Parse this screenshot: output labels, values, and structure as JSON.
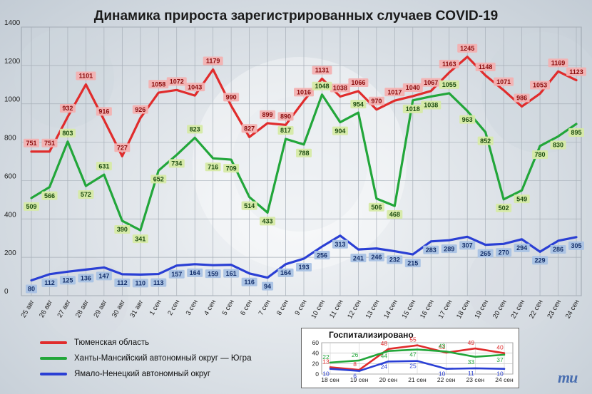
{
  "chart_data": [
    {
      "type": "line",
      "title": "Динамика прироста зарегистрированных случаев COVID-19",
      "xlabel": "",
      "ylabel": "",
      "ylim": [
        0,
        1400
      ],
      "yticks": [
        "0",
        "200",
        "400",
        "600",
        "800",
        "1000",
        "1200",
        "1400"
      ],
      "grid": true,
      "categories": [
        "25 авг",
        "26 авг",
        "27 авг",
        "28 авг",
        "29 авг",
        "30 авг",
        "31 авг",
        "1 сен",
        "2 сен",
        "3 сен",
        "4 сен",
        "5 сен",
        "6 сен",
        "7 сен",
        "8 сен",
        "9 сен",
        "10 сен",
        "11 сен",
        "12 сен",
        "13 сен",
        "14 сен",
        "15 сен",
        "16 сен",
        "17 сен",
        "18 сен",
        "19 сен",
        "20 сен",
        "21 сен",
        "22 сен",
        "23 сен",
        "24 сен"
      ],
      "legend_position": "bottom-left",
      "series": [
        {
          "name": "Тюменская область",
          "color": "#e02c2c",
          "label_bg": "#f3b1b1",
          "label_color": "#8a0d0d",
          "values": [
            751,
            751,
            932,
            1101,
            916,
            727,
            926,
            1058,
            1072,
            1043,
            1179,
            990,
            827,
            899,
            890,
            1016,
            1131,
            1038,
            1066,
            970,
            1017,
            1040,
            1067,
            1163,
            1245,
            1148,
            1071,
            986,
            1053,
            1169,
            1123
          ]
        },
        {
          "name": "Ханты-Мансийский автономный округ — Югра",
          "color": "#22a63a",
          "label_bg": "#d6eaa5",
          "label_color": "#1d4d11",
          "values": [
            509,
            566,
            803,
            572,
            631,
            390,
            341,
            652,
            734,
            823,
            716,
            709,
            514,
            433,
            817,
            788,
            1048,
            904,
            954,
            506,
            468,
            1018,
            1038,
            1055,
            963,
            852,
            502,
            549,
            780,
            830,
            895
          ]
        },
        {
          "name": "Ямало-Ненецкий автономный округ",
          "color": "#2a3fd4",
          "label_bg": "#a9c2e4",
          "label_color": "#15306b",
          "values": [
            80,
            112,
            125,
            136,
            147,
            112,
            110,
            113,
            157,
            164,
            159,
            161,
            116,
            94,
            164,
            193,
            256,
            313,
            241,
            246,
            232,
            215,
            283,
            289,
            307,
            265,
            270,
            294,
            229,
            286,
            305
          ]
        }
      ]
    },
    {
      "type": "line",
      "title": "Госпитализировано",
      "ylim": [
        0,
        60
      ],
      "yticks": [
        "0",
        "20",
        "40",
        "60"
      ],
      "categories": [
        "18 сен",
        "19 сен",
        "20 сен",
        "21 сен",
        "22 сен",
        "23 сен",
        "24 сен"
      ],
      "series": [
        {
          "color": "#e02c2c",
          "values": [
            13,
            8,
            48,
            55,
            41,
            49,
            40
          ]
        },
        {
          "color": "#22a63a",
          "values": [
            22,
            26,
            44,
            47,
            43,
            33,
            37
          ]
        },
        {
          "color": "#2a3fd4",
          "values": [
            10,
            6,
            24,
            25,
            10,
            11,
            10
          ]
        }
      ]
    }
  ],
  "logo": {
    "text": "ти"
  }
}
